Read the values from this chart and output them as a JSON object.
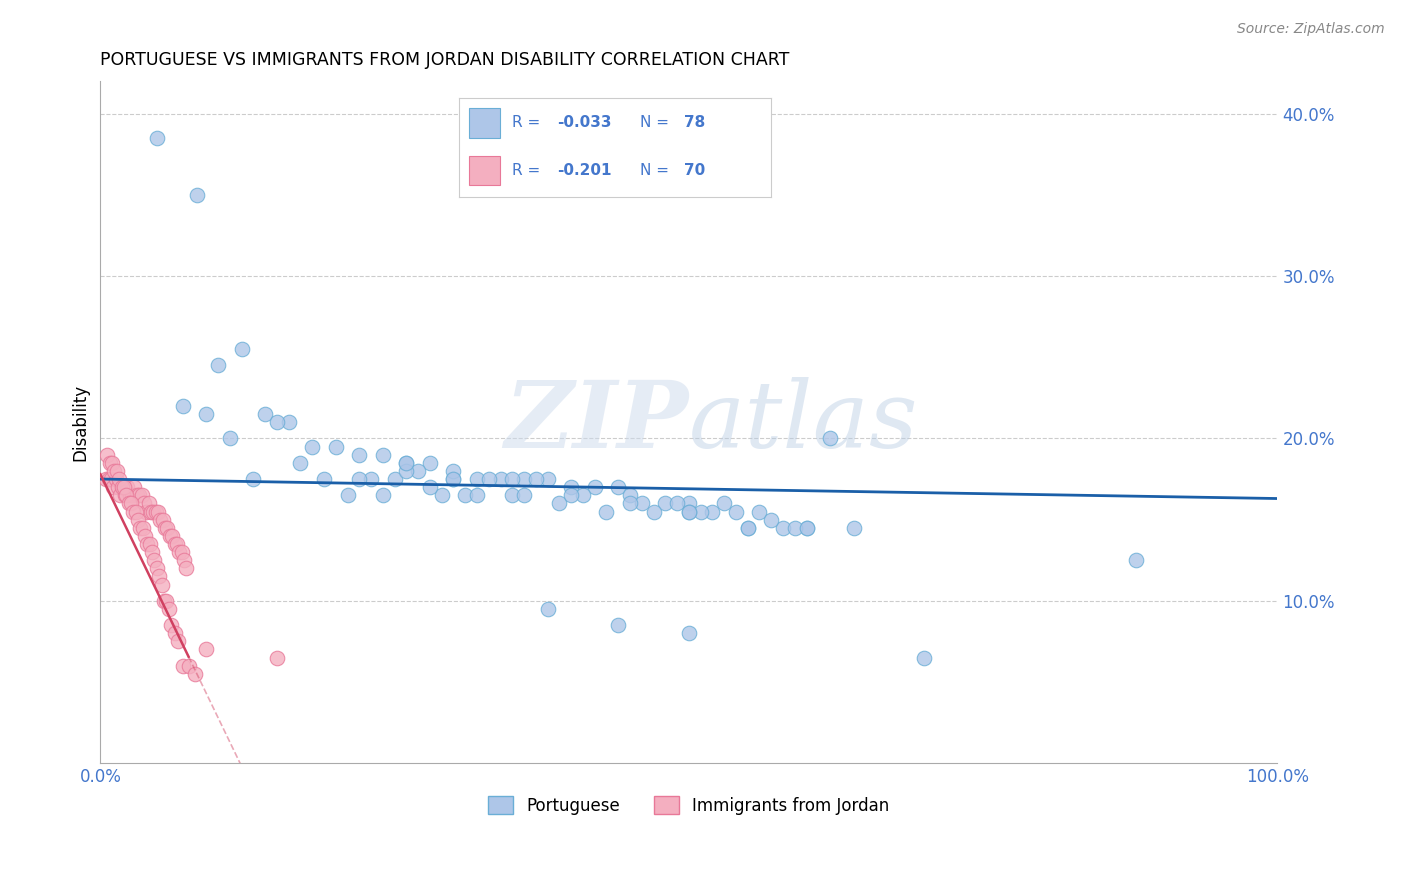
{
  "title": "PORTUGUESE VS IMMIGRANTS FROM JORDAN DISABILITY CORRELATION CHART",
  "source": "Source: ZipAtlas.com",
  "ylabel": "Disability",
  "xlim": [
    0,
    1.0
  ],
  "ylim": [
    0,
    0.42
  ],
  "blue_label": "Portuguese",
  "pink_label": "Immigrants from Jordan",
  "blue_R": "-0.033",
  "blue_N": "78",
  "pink_R": "-0.201",
  "pink_N": "70",
  "blue_color": "#aec6e8",
  "blue_edge": "#6aaed6",
  "pink_color": "#f4afc0",
  "pink_edge": "#e87898",
  "blue_line_color": "#1a5fa8",
  "pink_line_color": "#d04060",
  "legend_text_color": "#4477cc",
  "blue_points_x": [
    0.048,
    0.082,
    0.1,
    0.12,
    0.14,
    0.16,
    0.18,
    0.2,
    0.22,
    0.24,
    0.26,
    0.28,
    0.3,
    0.32,
    0.34,
    0.36,
    0.38,
    0.4,
    0.42,
    0.44,
    0.46,
    0.48,
    0.5,
    0.52,
    0.54,
    0.56,
    0.58,
    0.6,
    0.62,
    0.64,
    0.88,
    0.07,
    0.09,
    0.11,
    0.13,
    0.15,
    0.17,
    0.19,
    0.21,
    0.23,
    0.25,
    0.27,
    0.29,
    0.31,
    0.33,
    0.35,
    0.37,
    0.39,
    0.41,
    0.43,
    0.45,
    0.47,
    0.49,
    0.51,
    0.53,
    0.55,
    0.57,
    0.59,
    0.26,
    0.3,
    0.35,
    0.4,
    0.45,
    0.5,
    0.55,
    0.6,
    0.5,
    0.7,
    0.22,
    0.24,
    0.26,
    0.3,
    0.36,
    0.28,
    0.32,
    0.38,
    0.44,
    0.5
  ],
  "blue_points_y": [
    0.385,
    0.35,
    0.245,
    0.255,
    0.215,
    0.21,
    0.195,
    0.195,
    0.19,
    0.19,
    0.185,
    0.185,
    0.175,
    0.175,
    0.175,
    0.175,
    0.175,
    0.17,
    0.17,
    0.17,
    0.16,
    0.16,
    0.16,
    0.155,
    0.155,
    0.155,
    0.145,
    0.145,
    0.2,
    0.145,
    0.125,
    0.22,
    0.215,
    0.2,
    0.175,
    0.21,
    0.185,
    0.175,
    0.165,
    0.175,
    0.175,
    0.18,
    0.165,
    0.165,
    0.175,
    0.165,
    0.175,
    0.16,
    0.165,
    0.155,
    0.165,
    0.155,
    0.16,
    0.155,
    0.16,
    0.145,
    0.15,
    0.145,
    0.18,
    0.18,
    0.175,
    0.165,
    0.16,
    0.155,
    0.145,
    0.145,
    0.155,
    0.065,
    0.175,
    0.165,
    0.185,
    0.175,
    0.165,
    0.17,
    0.165,
    0.095,
    0.085,
    0.08
  ],
  "pink_points_x": [
    0.005,
    0.007,
    0.009,
    0.011,
    0.013,
    0.015,
    0.017,
    0.019,
    0.021,
    0.023,
    0.025,
    0.027,
    0.029,
    0.031,
    0.033,
    0.035,
    0.037,
    0.039,
    0.041,
    0.043,
    0.045,
    0.047,
    0.049,
    0.051,
    0.053,
    0.055,
    0.057,
    0.059,
    0.061,
    0.063,
    0.065,
    0.067,
    0.069,
    0.071,
    0.073,
    0.006,
    0.008,
    0.01,
    0.012,
    0.014,
    0.016,
    0.018,
    0.02,
    0.022,
    0.024,
    0.026,
    0.028,
    0.03,
    0.032,
    0.034,
    0.036,
    0.038,
    0.04,
    0.042,
    0.044,
    0.046,
    0.048,
    0.05,
    0.052,
    0.054,
    0.056,
    0.058,
    0.06,
    0.063,
    0.066,
    0.07,
    0.075,
    0.08,
    0.09,
    0.15
  ],
  "pink_points_y": [
    0.175,
    0.175,
    0.175,
    0.17,
    0.175,
    0.17,
    0.165,
    0.17,
    0.165,
    0.17,
    0.165,
    0.165,
    0.17,
    0.165,
    0.165,
    0.165,
    0.16,
    0.155,
    0.16,
    0.155,
    0.155,
    0.155,
    0.155,
    0.15,
    0.15,
    0.145,
    0.145,
    0.14,
    0.14,
    0.135,
    0.135,
    0.13,
    0.13,
    0.125,
    0.12,
    0.19,
    0.185,
    0.185,
    0.18,
    0.18,
    0.175,
    0.17,
    0.17,
    0.165,
    0.16,
    0.16,
    0.155,
    0.155,
    0.15,
    0.145,
    0.145,
    0.14,
    0.135,
    0.135,
    0.13,
    0.125,
    0.12,
    0.115,
    0.11,
    0.1,
    0.1,
    0.095,
    0.085,
    0.08,
    0.075,
    0.06,
    0.06,
    0.055,
    0.07,
    0.065
  ]
}
